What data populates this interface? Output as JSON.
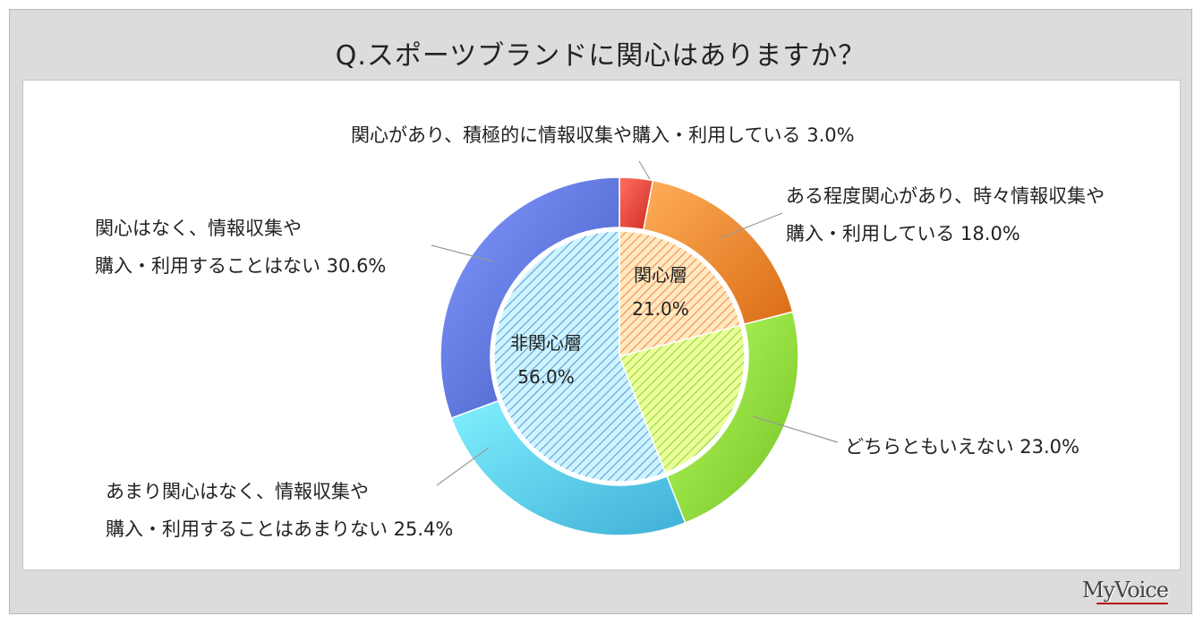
{
  "title": "Q.スポーツブランドに関心はありますか？",
  "logo": "MyVoice",
  "chart_data": {
    "type": "pie",
    "subtype": "doughnut-with-inner-pie",
    "title": "Q.スポーツブランドに関心はありますか？",
    "outer": [
      {
        "line1": "関心があり、積極的に情報収集や購入・利用している 3.0%",
        "line2": "",
        "value": 3.0,
        "color": "#e8463a"
      },
      {
        "line1": "ある程度関心があり、時々情報収集や",
        "line2": "購入・利用している 18.0%",
        "value": 18.0,
        "color": "#f3852f"
      },
      {
        "line1": "どちらともいえない 23.0%",
        "line2": "",
        "value": 23.0,
        "color": "#8ed93b"
      },
      {
        "line1": "あまり関心はなく、情報収集や",
        "line2": "購入・利用することはあまりない 25.4%",
        "value": 25.4,
        "color": "#58c8f0"
      },
      {
        "line1": "関心はなく、情報収集や",
        "line2": "購入・利用することはない 30.6%",
        "value": 30.6,
        "color": "#5a72d8"
      }
    ],
    "inner": [
      {
        "line1": "関心層",
        "line2": "21.0%",
        "value": 21.0,
        "color": "#f08a5e"
      },
      {
        "line1": "",
        "line2": "",
        "value": 23.0,
        "color": "#8ed93b"
      },
      {
        "line1": "非関心層",
        "line2": "56.0%",
        "value": 56.0,
        "color": "#6d97d8"
      }
    ]
  }
}
